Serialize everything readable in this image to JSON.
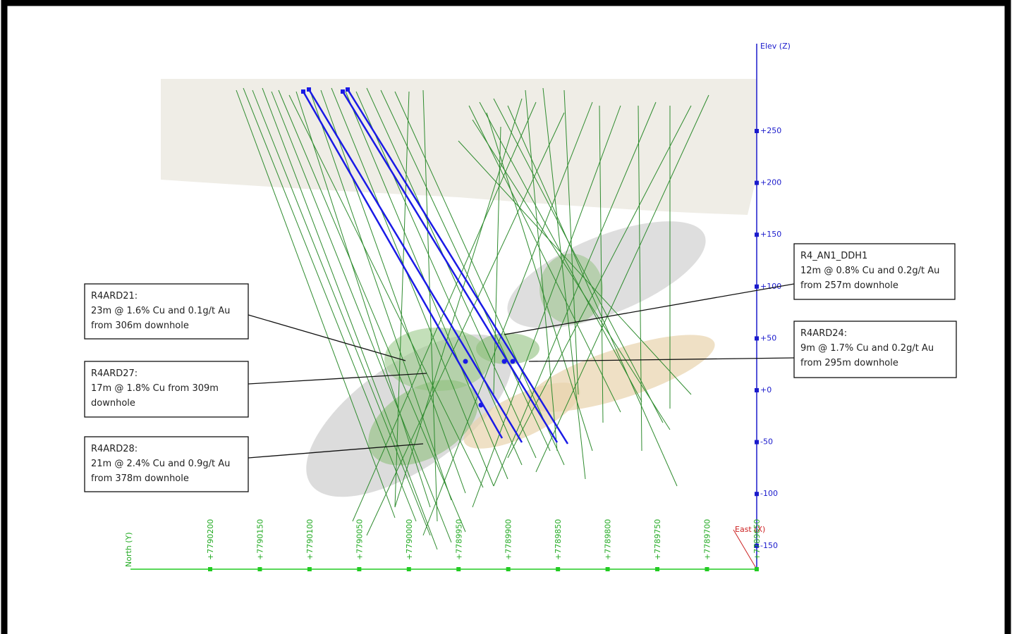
{
  "axes": {
    "z_label": "Elev (Z)",
    "z_ticks": [
      "+250",
      "+200",
      "+150",
      "+100",
      "+50",
      "+0",
      "-50",
      "-100",
      "-150"
    ],
    "y_label": "North (Y)",
    "y_ticks": [
      "+7790200",
      "+7790150",
      "+7790100",
      "+7790050",
      "+7790000",
      "+7789950",
      "+7789900",
      "+7789850",
      "+7789800",
      "+7789750",
      "+7789700",
      "+7789650"
    ],
    "x_label": "East (X)"
  },
  "callouts": [
    {
      "title": "R4ARD21:",
      "lines": [
        "23m @ 1.6% Cu and 0.1g/t Au",
        "from 306m downhole"
      ]
    },
    {
      "title": "R4ARD27:",
      "lines": [
        "17m @ 1.8% Cu from 309m",
        "downhole"
      ]
    },
    {
      "title": "R4ARD28:",
      "lines": [
        "21m @ 2.4% Cu and 0.9g/t Au",
        "from 378m downhole"
      ]
    },
    {
      "title": "R4_AN1_DDH1",
      "lines": [
        "12m @ 0.8% Cu and 0.2g/t Au",
        "from 257m downhole"
      ]
    },
    {
      "title": "R4ARD24:",
      "lines": [
        "9m @ 1.7% Cu and 0.2g/t Au",
        "from 295m downhole"
      ]
    }
  ]
}
